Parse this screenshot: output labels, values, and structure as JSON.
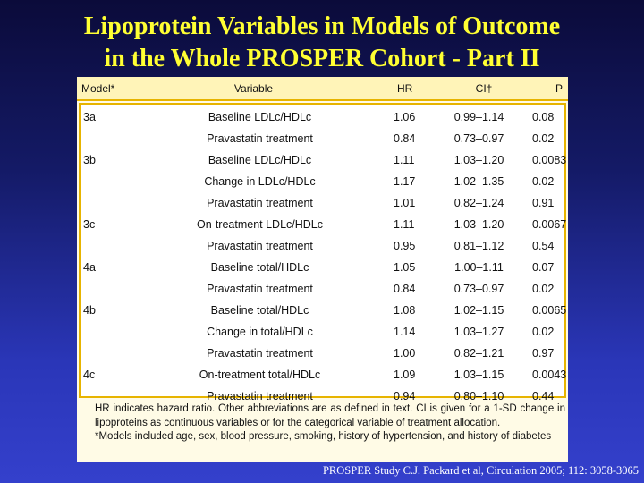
{
  "slide": {
    "title_line1": "Lipoprotein Variables in Models of Outcome",
    "title_line2": "in the Whole PROSPER Cohort - Part II",
    "citation": "PROSPER Study C.J. Packard et al, Circulation 2005; 112: 3058-3065"
  },
  "table": {
    "headers": {
      "model": "Model*",
      "variable": "Variable",
      "hr": "HR",
      "ci": "CI†",
      "p": "P"
    },
    "rows": [
      {
        "model": "3a",
        "variable": "Baseline LDLc/HDLc",
        "hr": "1.06",
        "ci": "0.99–1.14",
        "p": "0.08"
      },
      {
        "model": "",
        "variable": "Pravastatin treatment",
        "hr": "0.84",
        "ci": "0.73–0.97",
        "p": "0.02"
      },
      {
        "model": "3b",
        "variable": "Baseline LDLc/HDLc",
        "hr": "1.11",
        "ci": "1.03–1.20",
        "p": "0.0083"
      },
      {
        "model": "",
        "variable": "Change in LDLc/HDLc",
        "hr": "1.17",
        "ci": "1.02–1.35",
        "p": "0.02"
      },
      {
        "model": "",
        "variable": "Pravastatin treatment",
        "hr": "1.01",
        "ci": "0.82–1.24",
        "p": "0.91"
      },
      {
        "model": "3c",
        "variable": "On-treatment LDLc/HDLc",
        "hr": "1.11",
        "ci": "1.03–1.20",
        "p": "0.0067"
      },
      {
        "model": "",
        "variable": "Pravastatin treatment",
        "hr": "0.95",
        "ci": "0.81–1.12",
        "p": "0.54"
      },
      {
        "model": "4a",
        "variable": "Baseline total/HDLc",
        "hr": "1.05",
        "ci": "1.00–1.11",
        "p": "0.07"
      },
      {
        "model": "",
        "variable": "Pravastatin treatment",
        "hr": "0.84",
        "ci": "0.73–0.97",
        "p": "0.02"
      },
      {
        "model": "4b",
        "variable": "Baseline total/HDLc",
        "hr": "1.08",
        "ci": "1.02–1.15",
        "p": "0.0065"
      },
      {
        "model": "",
        "variable": "Change in total/HDLc",
        "hr": "1.14",
        "ci": "1.03–1.27",
        "p": "0.02"
      },
      {
        "model": "",
        "variable": "Pravastatin treatment",
        "hr": "1.00",
        "ci": "0.82–1.21",
        "p": "0.97"
      },
      {
        "model": "4c",
        "variable": "On-treatment total/HDLc",
        "hr": "1.09",
        "ci": "1.03–1.15",
        "p": "0.0043"
      },
      {
        "model": "",
        "variable": "Pravastatin treatment",
        "hr": "0.94",
        "ci": "0.80–1.10",
        "p": "0.44"
      }
    ],
    "footnote_1": "HR indicates hazard ratio. Other abbreviations are as defined in text. CI is given for a 1-SD change in lipoproteins as continuous variables or for the categorical variable of treatment allocation.",
    "footnote_2": "*Models included age, sex, blood pressure, smoking, history of hypertension, and history of diabetes"
  }
}
